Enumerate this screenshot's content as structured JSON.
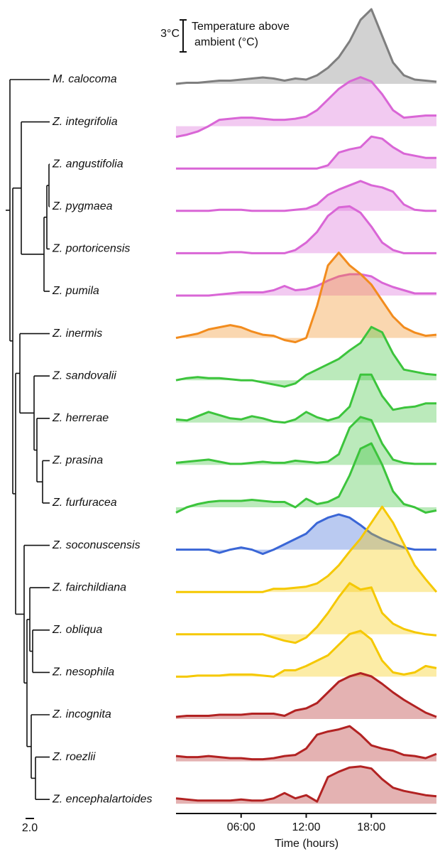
{
  "chart_data": {
    "type": "line",
    "y_label_lines": [
      "Temperature above",
      "ambient (°C)"
    ],
    "scale_bar": {
      "value": 3,
      "label": "3°C"
    },
    "tree_scale_label": "2.0",
    "x_label": "Time (hours)",
    "xlim": [
      0,
      24
    ],
    "xticks": [
      {
        "value": 6,
        "label": "06:00"
      },
      {
        "value": 12,
        "label": "12:00"
      },
      {
        "value": 18,
        "label": "18:00"
      }
    ],
    "x": [
      0,
      1,
      2,
      3,
      4,
      5,
      6,
      7,
      8,
      9,
      10,
      11,
      12,
      13,
      14,
      15,
      16,
      17,
      18,
      19,
      20,
      21,
      22,
      23,
      24
    ],
    "series": [
      {
        "name": "M. calocoma",
        "color": "#7f7f7f",
        "values": [
          0,
          0.1,
          0.1,
          0.2,
          0.3,
          0.3,
          0.4,
          0.5,
          0.6,
          0.5,
          0.3,
          0.5,
          0.4,
          0.8,
          1.5,
          2.5,
          4,
          6,
          7,
          4.5,
          2,
          0.8,
          0.4,
          0.3,
          0.2
        ]
      },
      {
        "name": "Z. integrifolia",
        "color": "#d966d6",
        "values": [
          -1,
          -0.8,
          -0.5,
          0,
          0.6,
          0.7,
          0.8,
          0.8,
          0.7,
          0.6,
          0.6,
          0.7,
          0.9,
          1.5,
          2.5,
          3.5,
          4.2,
          4.6,
          4.2,
          3,
          1.5,
          0.8,
          0.9,
          1,
          1
        ]
      },
      {
        "name": "Z. angustifolia",
        "color": "#d966d6",
        "values": [
          0,
          0,
          0,
          0,
          0,
          0,
          0,
          0,
          0,
          0,
          0,
          0,
          0,
          0,
          0.3,
          1.5,
          1.8,
          2,
          3,
          2.8,
          2,
          1.4,
          1.2,
          1,
          1
        ]
      },
      {
        "name": "Z. pygmaea",
        "color": "#d966d6",
        "values": [
          0,
          0,
          0,
          0,
          0.1,
          0.1,
          0.1,
          0,
          0,
          0,
          0,
          0.1,
          0.2,
          0.6,
          1.5,
          2,
          2.4,
          2.8,
          2.4,
          2.2,
          1.8,
          0.6,
          0.1,
          0,
          0
        ]
      },
      {
        "name": "Z. portoricensis",
        "color": "#d966d6",
        "values": [
          0,
          0,
          0,
          0,
          0,
          0.1,
          0.1,
          0,
          0,
          0,
          0,
          0.3,
          1,
          2,
          3.5,
          4.3,
          4.4,
          3.8,
          2.5,
          1,
          0.3,
          0,
          0,
          0,
          0
        ]
      },
      {
        "name": "Z. pumila",
        "color": "#d966d6",
        "values": [
          0,
          0,
          0,
          0,
          0.1,
          0.2,
          0.3,
          0.3,
          0.3,
          0.5,
          0.9,
          0.5,
          0.6,
          0.9,
          1.4,
          1.8,
          2,
          2,
          1.8,
          1.2,
          0.8,
          0.5,
          0.2,
          0.2,
          0.2
        ]
      },
      {
        "name": "Z. inermis",
        "color": "#f28c1e",
        "values": [
          0,
          0.2,
          0.4,
          0.8,
          1,
          1.2,
          1,
          0.6,
          0.3,
          0.2,
          -0.2,
          -0.4,
          0,
          3,
          6.8,
          8,
          6.8,
          6,
          5,
          3.5,
          2,
          1,
          0.5,
          0.2,
          0.3
        ]
      },
      {
        "name": "Z. sandovalii",
        "color": "#3cc43c",
        "values": [
          0,
          0.2,
          0.3,
          0.2,
          0.2,
          0.1,
          0,
          0,
          -0.2,
          -0.4,
          -0.6,
          -0.3,
          0.5,
          1,
          1.5,
          2,
          2.8,
          3.5,
          5,
          4.5,
          2.5,
          1,
          0.8,
          0.6,
          0.5
        ]
      },
      {
        "name": "Z. herrerae",
        "color": "#3cc43c",
        "values": [
          0.3,
          0.2,
          0.6,
          1,
          0.7,
          0.4,
          0.3,
          0.6,
          0.4,
          0.1,
          0,
          0.3,
          1,
          0.5,
          0.2,
          0.5,
          1.5,
          4.5,
          4.5,
          2.5,
          1.2,
          1.4,
          1.5,
          1.8,
          1.8
        ]
      },
      {
        "name": "Z. prasina",
        "color": "#3cc43c",
        "values": [
          0.2,
          0.3,
          0.4,
          0.5,
          0.3,
          0.1,
          0.1,
          0.2,
          0.3,
          0.2,
          0.2,
          0.4,
          0.3,
          0.2,
          0.3,
          1,
          3.5,
          4.5,
          4.2,
          2,
          0.5,
          0.2,
          0.1,
          0.1,
          0.1
        ]
      },
      {
        "name": "Z. furfuracea",
        "color": "#3cc43c",
        "values": [
          -0.5,
          0,
          0.3,
          0.5,
          0.6,
          0.6,
          0.6,
          0.7,
          0.6,
          0.5,
          0.5,
          0,
          0.8,
          0.3,
          0.5,
          1,
          3,
          5.5,
          6,
          4,
          1.5,
          0.3,
          0,
          -0.5,
          -0.3
        ]
      },
      {
        "name": "Z. soconuscensis",
        "color": "#3a66d6",
        "values": [
          0,
          0,
          0,
          0,
          -0.3,
          0,
          0.2,
          0,
          -0.4,
          0,
          0.5,
          1,
          1.5,
          2.5,
          3,
          3.3,
          3,
          2.3,
          1.5,
          1,
          0.6,
          0.2,
          0,
          0,
          0
        ]
      },
      {
        "name": "Z. fairchildiana",
        "color": "#f5c800",
        "values": [
          0,
          0,
          0,
          0,
          0,
          0,
          0,
          0,
          0,
          0.3,
          0.3,
          0.4,
          0.5,
          0.8,
          1.5,
          2.5,
          3.8,
          5,
          6.5,
          8,
          6.5,
          4.5,
          2.5,
          1.2,
          0
        ]
      },
      {
        "name": "Z. obliqua",
        "color": "#f5c800",
        "values": [
          0,
          0,
          0,
          0,
          0,
          0,
          0,
          0,
          0,
          -0.3,
          -0.6,
          -0.8,
          -0.3,
          0.7,
          2,
          3.5,
          4.8,
          4.2,
          4.4,
          2,
          1,
          0.5,
          0.2,
          0,
          -0.1
        ]
      },
      {
        "name": "Z. nesophila",
        "color": "#f5c800",
        "values": [
          0,
          0,
          0.1,
          0.1,
          0.1,
          0.2,
          0.2,
          0.2,
          0.1,
          0,
          0.6,
          0.6,
          1,
          1.5,
          2,
          3,
          4,
          4.3,
          3.5,
          1.5,
          0.4,
          0.2,
          0.4,
          1,
          0.8
        ]
      },
      {
        "name": "Z. incognita",
        "color": "#b22222",
        "values": [
          0.2,
          0.3,
          0.3,
          0.3,
          0.4,
          0.4,
          0.4,
          0.5,
          0.5,
          0.5,
          0.3,
          0.8,
          1,
          1.5,
          2.5,
          3.5,
          4,
          4.3,
          4,
          3.3,
          2.5,
          1.8,
          1.2,
          0.6,
          0.2
        ]
      },
      {
        "name": "Z. roezlii",
        "color": "#b22222",
        "values": [
          0.5,
          0.4,
          0.4,
          0.5,
          0.4,
          0.3,
          0.3,
          0.2,
          0.2,
          0.3,
          0.5,
          0.6,
          1.2,
          2.5,
          2.8,
          3,
          3.3,
          2.5,
          1.5,
          1.2,
          1,
          0.6,
          0.5,
          0.3,
          0.7
        ]
      },
      {
        "name": "Z. encephalartoides",
        "color": "#b22222",
        "values": [
          0.5,
          0.4,
          0.3,
          0.3,
          0.3,
          0.3,
          0.4,
          0.3,
          0.3,
          0.5,
          1,
          0.5,
          0.8,
          0.2,
          2.5,
          3,
          3.4,
          3.5,
          3.3,
          2.3,
          1.5,
          1.2,
          1,
          0.8,
          0.7
        ]
      }
    ]
  }
}
